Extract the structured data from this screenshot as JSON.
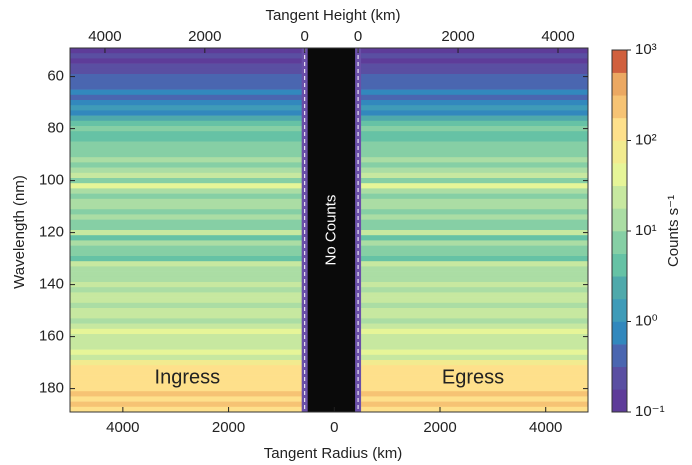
{
  "chart_data": {
    "type": "heatmap",
    "x2_label": "Tangent Height (km)",
    "x_label": "Tangent Radius (km)",
    "y_label": "Wavelength (nm)",
    "colorbar_label": "Counts s⁻¹",
    "gap_label": "No Counts",
    "xlim": [
      -5000,
      4800
    ],
    "xticks": [
      {
        "value": -4000,
        "label": "4000"
      },
      {
        "value": -2000,
        "label": "2000"
      },
      0,
      2000,
      4000
    ],
    "ylim": [
      49,
      189
    ],
    "yticks": [
      60,
      80,
      100,
      120,
      140,
      160,
      180
    ],
    "panels": [
      {
        "label": "Ingress",
        "range": [
          -5000,
          -560
        ],
        "x2lim": [
          4700,
          0
        ],
        "x2ticks": [
          4000,
          2000,
          0
        ]
      },
      {
        "label": "Egress",
        "range": [
          450,
          4800
        ],
        "x2lim": [
          0,
          4600
        ],
        "x2ticks": [
          0,
          2000,
          4000
        ]
      }
    ],
    "y_bins": [
      49,
      51,
      53,
      55,
      57,
      59,
      61,
      63,
      65,
      67,
      69,
      71,
      73,
      75,
      77,
      79,
      81,
      83,
      85,
      87,
      89,
      91,
      93,
      95,
      97,
      99,
      101,
      103,
      105,
      107,
      109,
      111,
      113,
      115,
      117,
      119,
      121,
      123,
      125,
      127,
      129,
      131,
      133,
      135,
      137,
      139,
      141,
      143,
      145,
      147,
      149,
      151,
      153,
      155,
      157,
      159,
      161,
      163,
      165,
      167,
      169,
      171,
      173,
      175,
      177,
      179,
      181,
      183,
      185,
      187,
      189
    ],
    "values": [
      0.15,
      0.2,
      0.15,
      0.25,
      0.3,
      0.4,
      0.35,
      0.5,
      0.6,
      0.5,
      0.8,
      1,
      0.7,
      2,
      4,
      6,
      5,
      4,
      6,
      8,
      7,
      10,
      9,
      12,
      20,
      8,
      40,
      15,
      8,
      10,
      12,
      9,
      15,
      8,
      6,
      30,
      5,
      12,
      8,
      6,
      4,
      20,
      10,
      12,
      15,
      25,
      12,
      18,
      20,
      14,
      25,
      30,
      15,
      20,
      35,
      25,
      20,
      30,
      40,
      30,
      60,
      100,
      110,
      100,
      100,
      120,
      180,
      140,
      200,
      150
    ],
    "color_scale": "log",
    "clim": [
      0.1,
      1000
    ],
    "cticks": [
      {
        "value": 0.1,
        "label": "10⁻¹"
      },
      {
        "value": 1,
        "label": "10⁰"
      },
      {
        "value": 10,
        "label": "10¹"
      },
      {
        "value": 100,
        "label": "10²"
      },
      {
        "value": 1000,
        "label": "10³"
      }
    ],
    "colormap": [
      "#5e3c99",
      "#5a4fa2",
      "#4a66b0",
      "#3288bd",
      "#3f9bb8",
      "#4fa9ab",
      "#66c2a5",
      "#86cfa5",
      "#abdda4",
      "#c7e8a0",
      "#e6f598",
      "#f2eb8f",
      "#fee08b",
      "#f6c374",
      "#eba862",
      "#d0603e"
    ]
  }
}
